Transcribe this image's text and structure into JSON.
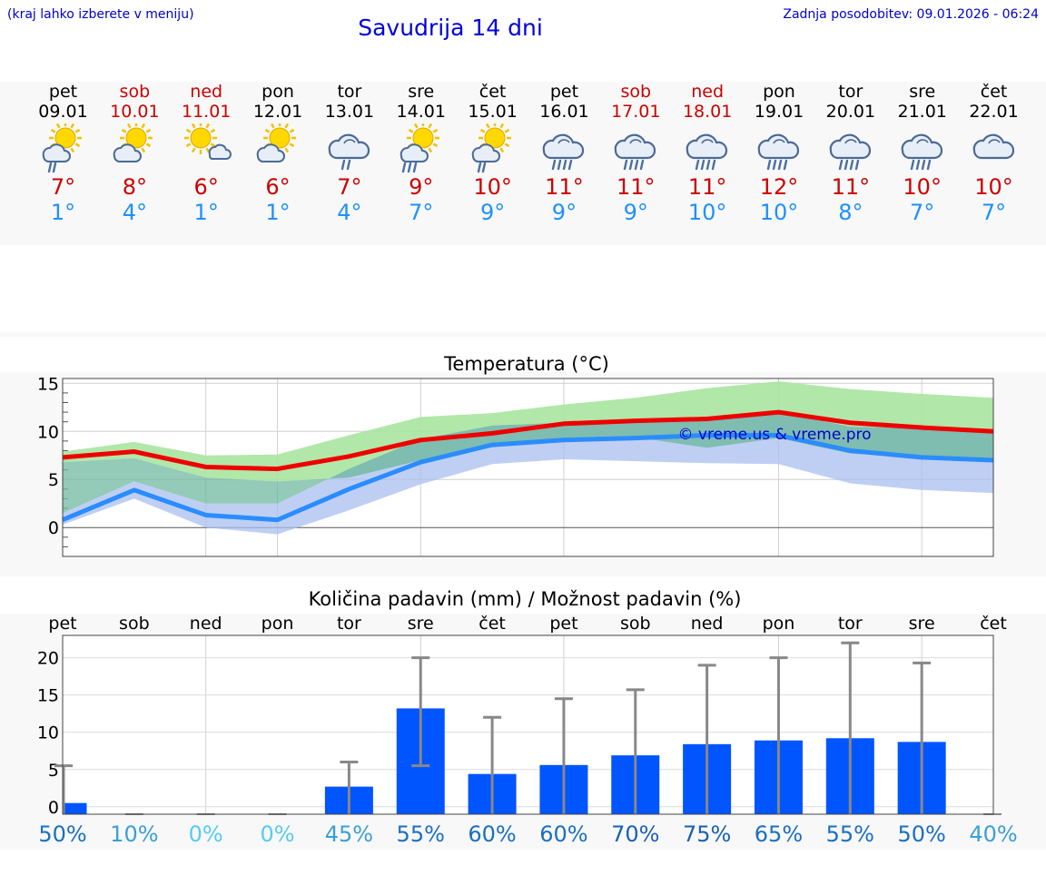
{
  "header": {
    "menu_hint": "(kraj lahko izberete v meniju)",
    "title": "Savudrija 14 dni",
    "updated": "Zadnja posodobitev: 09.01.2026 - 06:24"
  },
  "colors": {
    "max_temp": "#cc0000",
    "min_temp": "#1e90ff",
    "max_band": "#a8e4a0",
    "min_band": "#a9bff0",
    "max_line": "#ee0000",
    "min_line": "#2a8cff",
    "bar": "#0055ff",
    "whisker": "#888888",
    "copyright": "#0000cc"
  },
  "forecast": [
    {
      "day": "pet",
      "date": "09.01",
      "weekend": false,
      "icon": "sun-cloud-rain-icon",
      "max": "7°",
      "min": "1°"
    },
    {
      "day": "sob",
      "date": "10.01",
      "weekend": true,
      "icon": "sun-cloud-icon",
      "max": "8°",
      "min": "4°"
    },
    {
      "day": "ned",
      "date": "11.01",
      "weekend": true,
      "icon": "sun-small-cloud-icon",
      "max": "6°",
      "min": "1°"
    },
    {
      "day": "pon",
      "date": "12.01",
      "weekend": false,
      "icon": "sun-cloud-icon",
      "max": "6°",
      "min": "1°"
    },
    {
      "day": "tor",
      "date": "13.01",
      "weekend": false,
      "icon": "cloud-rain-icon",
      "max": "7°",
      "min": "4°"
    },
    {
      "day": "sre",
      "date": "14.01",
      "weekend": false,
      "icon": "sun-cloud-heavy-rain-icon",
      "max": "9°",
      "min": "7°"
    },
    {
      "day": "čet",
      "date": "15.01",
      "weekend": false,
      "icon": "sun-cloud-rain-icon",
      "max": "10°",
      "min": "9°"
    },
    {
      "day": "pet",
      "date": "16.01",
      "weekend": false,
      "icon": "cloud-heavy-rain-icon",
      "max": "11°",
      "min": "9°"
    },
    {
      "day": "sob",
      "date": "17.01",
      "weekend": true,
      "icon": "cloud-heavy-rain-icon",
      "max": "11°",
      "min": "9°"
    },
    {
      "day": "ned",
      "date": "18.01",
      "weekend": true,
      "icon": "cloud-heavy-rain-icon",
      "max": "11°",
      "min": "10°"
    },
    {
      "day": "pon",
      "date": "19.01",
      "weekend": false,
      "icon": "cloud-heavy-rain-icon",
      "max": "12°",
      "min": "10°"
    },
    {
      "day": "tor",
      "date": "20.01",
      "weekend": false,
      "icon": "cloud-heavy-rain-icon",
      "max": "11°",
      "min": "8°"
    },
    {
      "day": "sre",
      "date": "21.01",
      "weekend": false,
      "icon": "cloud-heavy-rain-icon",
      "max": "10°",
      "min": "7°"
    },
    {
      "day": "čet",
      "date": "22.01",
      "weekend": false,
      "icon": "cloud-icon",
      "max": "10°",
      "min": "7°"
    }
  ],
  "chart_data": [
    {
      "type": "line",
      "title": "Temperatura (°C)",
      "xlabel": "",
      "ylabel": "",
      "ylim": [
        -3,
        15.5
      ],
      "yticks": [
        0,
        5,
        10,
        15
      ],
      "x": [
        "09.01",
        "10.01",
        "11.01",
        "12.01",
        "13.01",
        "14.01",
        "15.01",
        "16.01",
        "17.01",
        "18.01",
        "19.01",
        "20.01",
        "21.01",
        "22.01"
      ],
      "series": [
        {
          "name": "max",
          "values": [
            7.3,
            7.9,
            6.3,
            6.1,
            7.4,
            9.1,
            9.8,
            10.8,
            11.1,
            11.3,
            12.0,
            10.9,
            10.4,
            10.0
          ],
          "band_low": [
            6.8,
            7.2,
            5.2,
            4.8,
            5.2,
            7.0,
            8.7,
            9.3,
            9.4,
            8.3,
            9.3,
            7.7,
            7.3,
            7.2
          ],
          "band_high": [
            7.9,
            8.9,
            7.5,
            7.6,
            9.6,
            11.5,
            11.9,
            12.8,
            13.5,
            14.5,
            15.2,
            14.4,
            13.9,
            13.5
          ]
        },
        {
          "name": "min",
          "values": [
            0.8,
            3.9,
            1.3,
            0.8,
            4.0,
            6.8,
            8.6,
            9.1,
            9.3,
            9.6,
            9.6,
            8.0,
            7.3,
            7.0
          ],
          "band_low": [
            0.3,
            3.0,
            0.0,
            -0.7,
            1.8,
            4.5,
            6.6,
            7.1,
            6.9,
            6.7,
            6.6,
            4.6,
            3.9,
            3.6
          ],
          "band_high": [
            1.5,
            4.8,
            2.5,
            2.5,
            6.1,
            9.2,
            10.6,
            10.9,
            10.9,
            11.3,
            12.0,
            10.5,
            10.3,
            10.0
          ]
        }
      ],
      "annotation": "© vreme.us & vreme.pro"
    },
    {
      "type": "bar",
      "title": "Količina padavin (mm) / Možnost padavin (%)",
      "categories": [
        "pet",
        "sob",
        "ned",
        "pon",
        "tor",
        "sre",
        "čet",
        "pet",
        "sob",
        "ned",
        "pon",
        "tor",
        "sre",
        "čet"
      ],
      "ylim": [
        -1,
        23
      ],
      "yticks": [
        0,
        5,
        10,
        15,
        20
      ],
      "values": [
        0.5,
        0,
        0,
        0,
        2.7,
        13.2,
        4.4,
        5.6,
        6.9,
        8.4,
        8.9,
        9.2,
        8.7,
        0
      ],
      "error_low": [
        0,
        0,
        0,
        0,
        0,
        5.5,
        0,
        0,
        0,
        0,
        0,
        0,
        0,
        0
      ],
      "error_high": [
        5.5,
        0,
        0,
        0,
        6.0,
        20.0,
        12.0,
        14.5,
        15.7,
        19.0,
        20.0,
        22.0,
        19.3,
        0
      ],
      "probability": [
        "50%",
        "10%",
        "0%",
        "0%",
        "45%",
        "55%",
        "60%",
        "60%",
        "70%",
        "75%",
        "65%",
        "55%",
        "50%",
        "40%"
      ],
      "probability_colors": [
        "#1a6fc4",
        "#3a9fd8",
        "#55ccf0",
        "#55ccf0",
        "#3a9fd8",
        "#1a6fc4",
        "#1a6fc4",
        "#1a6fc4",
        "#1a5fb8",
        "#1a5fb8",
        "#1a6fc4",
        "#1a6fc4",
        "#1a6fc4",
        "#3a9fd8"
      ]
    }
  ]
}
